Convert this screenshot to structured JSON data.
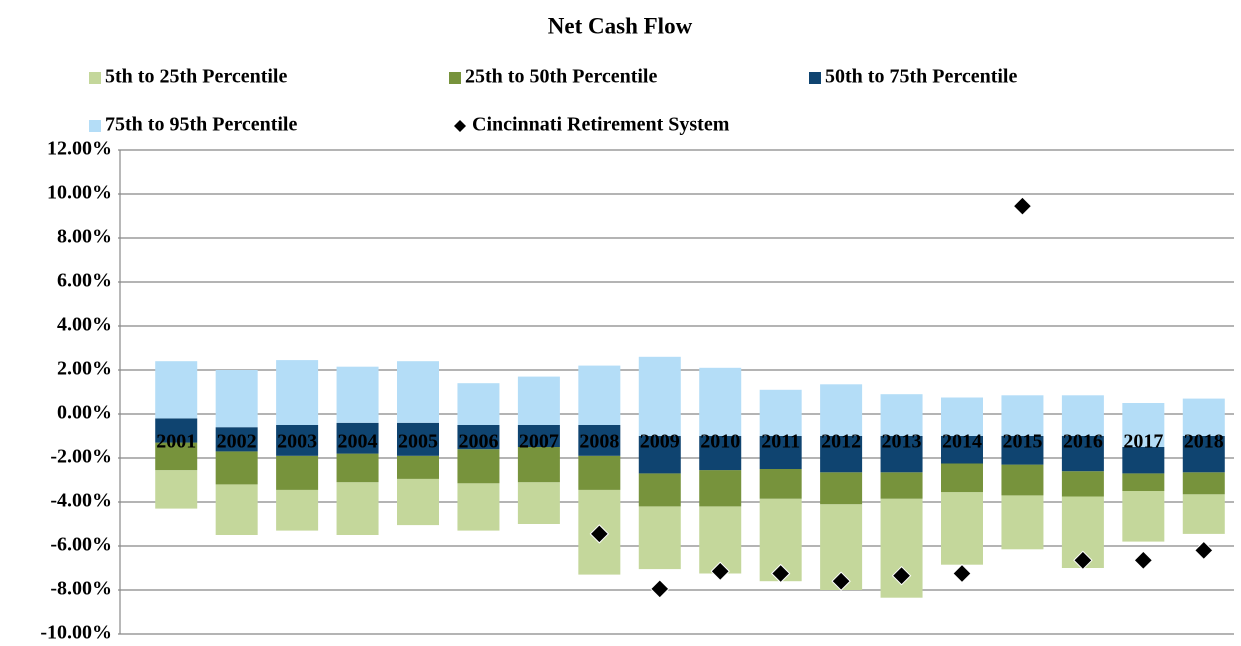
{
  "chart_data": {
    "type": "bar",
    "title": "Net Cash Flow",
    "categories": [
      "2001",
      "2002",
      "2003",
      "2004",
      "2005",
      "2006",
      "2007",
      "2008",
      "2009",
      "2010",
      "2011",
      "2012",
      "2013",
      "2014",
      "2015",
      "2016",
      "2017",
      "2018"
    ],
    "series": [
      {
        "name": "5th to 25th Percentile",
        "color": "#c4d79b",
        "values": [
          [
            -4.3,
            -2.55
          ],
          [
            -5.5,
            -3.2
          ],
          [
            -5.3,
            -3.45
          ],
          [
            -5.5,
            -3.1
          ],
          [
            -5.05,
            -2.95
          ],
          [
            -5.3,
            -3.15
          ],
          [
            -5.0,
            -3.1
          ],
          [
            -7.3,
            -3.45
          ],
          [
            -7.05,
            -4.2
          ],
          [
            -7.25,
            -4.2
          ],
          [
            -7.6,
            -3.85
          ],
          [
            -8.0,
            -4.1
          ],
          [
            -8.35,
            -3.85
          ],
          [
            -6.85,
            -3.55
          ],
          [
            -6.15,
            -3.7
          ],
          [
            -7.0,
            -3.75
          ],
          [
            -5.8,
            -3.5
          ],
          [
            -5.45,
            -3.65
          ]
        ]
      },
      {
        "name": "25th to 50th Percentile",
        "color": "#77933c",
        "values": [
          [
            -2.55,
            -1.3
          ],
          [
            -3.2,
            -1.7
          ],
          [
            -3.45,
            -1.9
          ],
          [
            -3.1,
            -1.8
          ],
          [
            -2.95,
            -1.9
          ],
          [
            -3.15,
            -1.6
          ],
          [
            -3.1,
            -1.5
          ],
          [
            -3.45,
            -1.9
          ],
          [
            -4.2,
            -2.7
          ],
          [
            -4.2,
            -2.55
          ],
          [
            -3.85,
            -2.5
          ],
          [
            -4.1,
            -2.65
          ],
          [
            -3.85,
            -2.65
          ],
          [
            -3.55,
            -2.25
          ],
          [
            -3.7,
            -2.3
          ],
          [
            -3.75,
            -2.6
          ],
          [
            -3.5,
            -2.7
          ],
          [
            -3.65,
            -2.65
          ]
        ]
      },
      {
        "name": "50th to 75th Percentile",
        "color": "#0f4470",
        "values": [
          [
            -1.3,
            -0.2
          ],
          [
            -1.7,
            -0.6
          ],
          [
            -1.9,
            -0.5
          ],
          [
            -1.8,
            -0.4
          ],
          [
            -1.9,
            -0.4
          ],
          [
            -1.6,
            -0.5
          ],
          [
            -1.5,
            -0.5
          ],
          [
            -1.9,
            -0.5
          ],
          [
            -2.7,
            -1.0
          ],
          [
            -2.55,
            -1.0
          ],
          [
            -2.5,
            -1.0
          ],
          [
            -2.65,
            -1.0
          ],
          [
            -2.65,
            -1.0
          ],
          [
            -2.25,
            -1.0
          ],
          [
            -2.3,
            -1.0
          ],
          [
            -2.6,
            -1.0
          ],
          [
            -2.7,
            -1.5
          ],
          [
            -2.65,
            -1.0
          ]
        ]
      },
      {
        "name": "75th to 95th Percentile",
        "color": "#b4ddf7",
        "values": [
          [
            -0.2,
            2.4
          ],
          [
            -0.6,
            2.0
          ],
          [
            -0.5,
            2.45
          ],
          [
            -0.4,
            2.15
          ],
          [
            -0.4,
            2.4
          ],
          [
            -0.5,
            1.4
          ],
          [
            -0.5,
            1.7
          ],
          [
            -0.5,
            2.2
          ],
          [
            -1.0,
            2.6
          ],
          [
            -1.0,
            2.1
          ],
          [
            -1.0,
            1.1
          ],
          [
            -1.0,
            1.35
          ],
          [
            -1.0,
            0.9
          ],
          [
            -1.0,
            0.75
          ],
          [
            -1.0,
            0.85
          ],
          [
            -1.0,
            0.85
          ],
          [
            -1.5,
            0.5
          ],
          [
            -1.0,
            0.7
          ]
        ]
      },
      {
        "name": "Cincinnati Retirement System",
        "type": "scatter",
        "marker": "diamond",
        "color": "#000000",
        "values": [
          null,
          null,
          null,
          null,
          null,
          null,
          null,
          -5.45,
          -7.95,
          -7.15,
          -7.25,
          -7.6,
          -7.35,
          -7.25,
          9.45,
          -6.65,
          -6.65,
          -6.2
        ]
      }
    ],
    "ylim": [
      -10,
      12
    ],
    "yticks": [
      {
        "value": -10,
        "label": "-10.00%"
      },
      {
        "value": -8,
        "label": "-8.00%"
      },
      {
        "value": -6,
        "label": "-6.00%"
      },
      {
        "value": -4,
        "label": "-4.00%"
      },
      {
        "value": -2,
        "label": "-2.00%"
      },
      {
        "value": 0,
        "label": "0.00%"
      },
      {
        "value": 2,
        "label": "2.00%"
      },
      {
        "value": 4,
        "label": "4.00%"
      },
      {
        "value": 6,
        "label": "6.00%"
      },
      {
        "value": 8,
        "label": "8.00%"
      },
      {
        "value": 10,
        "label": "10.00%"
      },
      {
        "value": 12,
        "label": "12.00%"
      }
    ],
    "grid": true,
    "legend": "top"
  }
}
